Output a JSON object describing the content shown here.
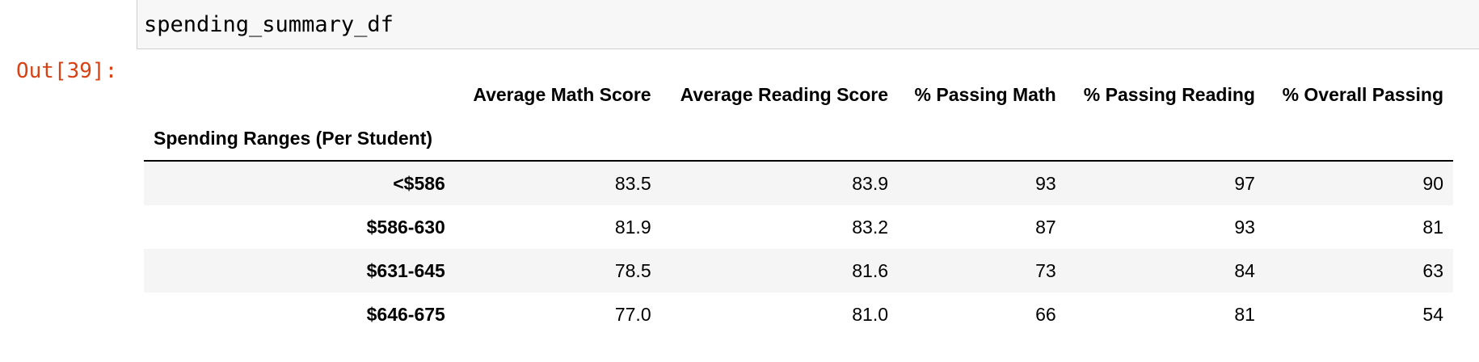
{
  "input_cell": {
    "code": "spending_summary_df"
  },
  "output": {
    "prompt": "Out[39]:"
  },
  "table": {
    "index_name": "Spending Ranges (Per Student)",
    "columns": [
      "Average Math Score",
      "Average Reading Score",
      "% Passing Math",
      "% Passing Reading",
      "% Overall Passing"
    ],
    "rows": [
      {
        "label": "<$586",
        "values": [
          "83.5",
          "83.9",
          "93",
          "97",
          "90"
        ]
      },
      {
        "label": "$586-630",
        "values": [
          "81.9",
          "83.2",
          "87",
          "93",
          "81"
        ]
      },
      {
        "label": "$631-645",
        "values": [
          "78.5",
          "81.6",
          "73",
          "84",
          "63"
        ]
      },
      {
        "label": "$646-675",
        "values": [
          "77.0",
          "81.0",
          "66",
          "81",
          "54"
        ]
      }
    ]
  }
}
